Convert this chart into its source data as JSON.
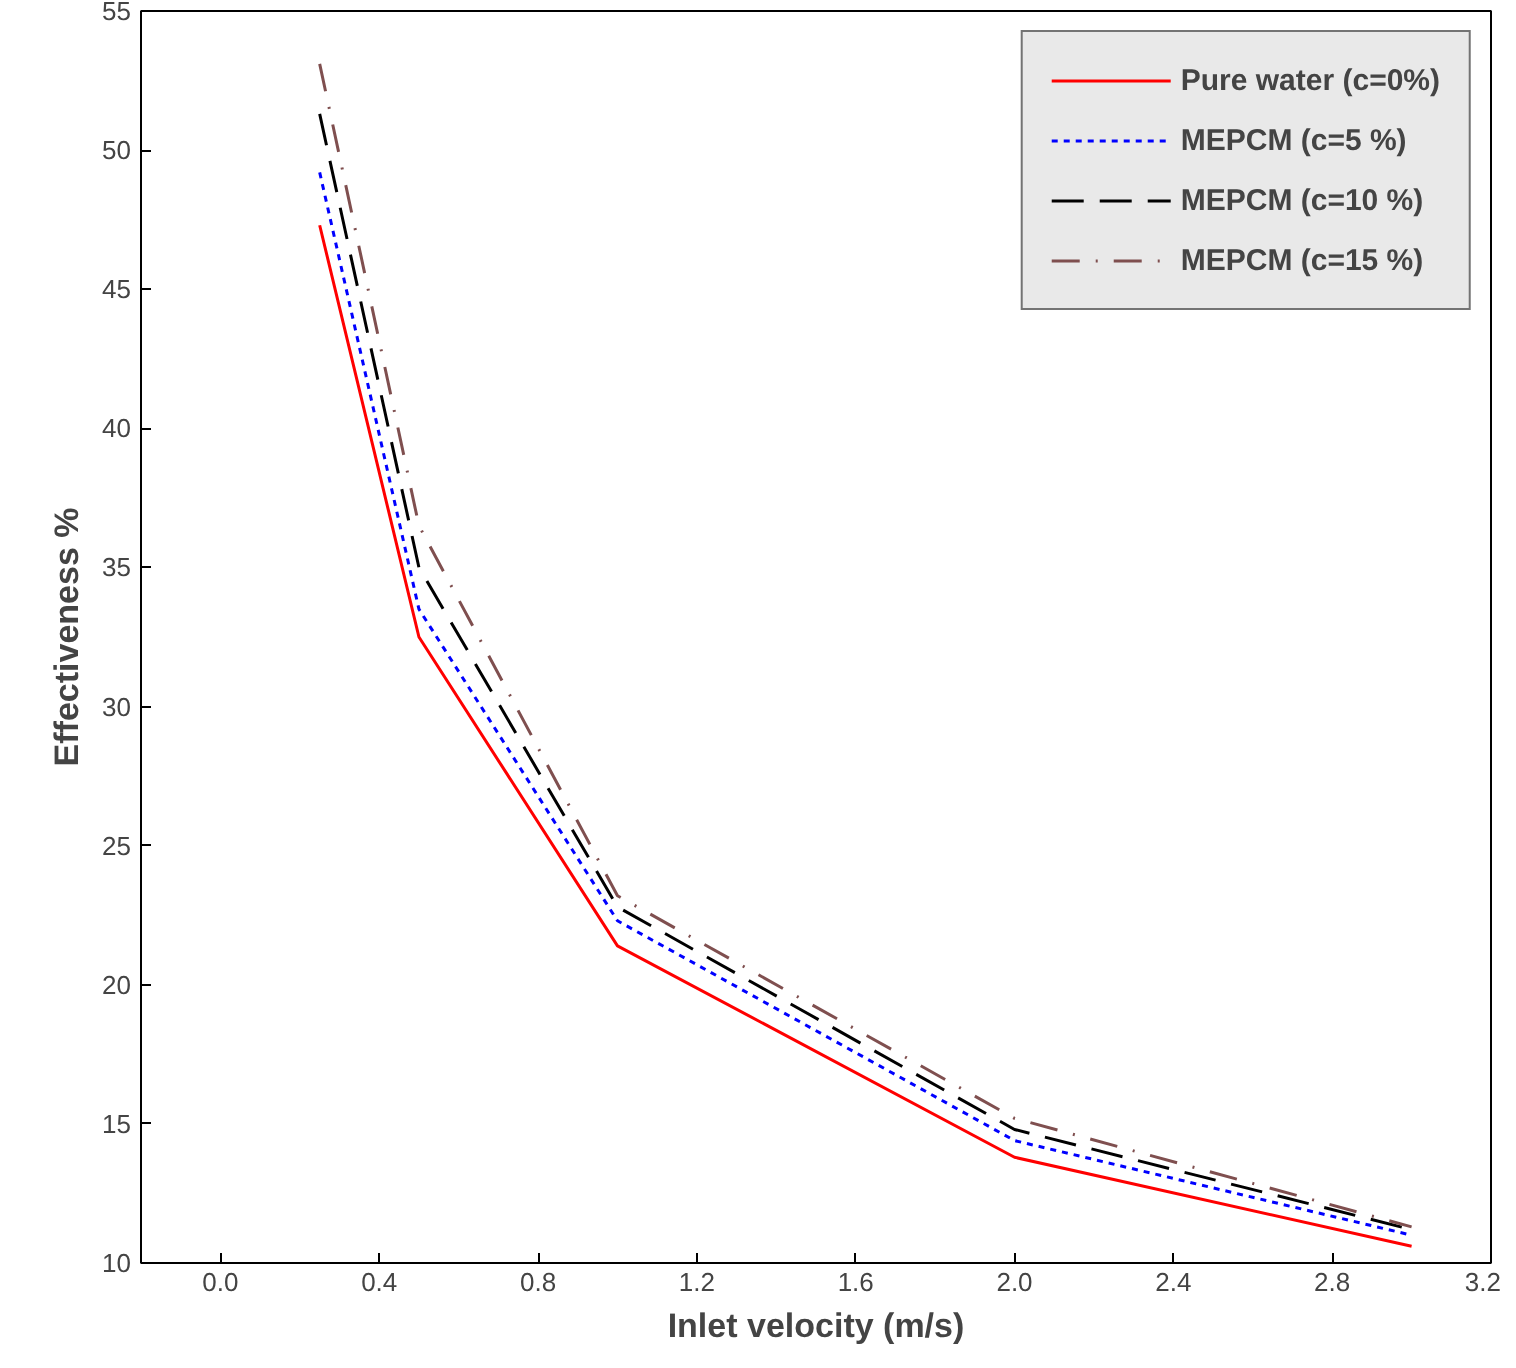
{
  "chart_data": {
    "type": "line",
    "xlabel": "Inlet velocity (m/s)",
    "ylabel": "Effectiveness %",
    "x": [
      0.25,
      0.5,
      1,
      2,
      3
    ],
    "series": [
      {
        "name": "Pure water (c=0%)",
        "color": "#ff0000",
        "line_style": "solid",
        "values": [
          47.3,
          32.5,
          21.4,
          13.8,
          10.6
        ]
      },
      {
        "name": "MEPCM (c=5 %)",
        "color": "#0000ff",
        "line_style": "dotted",
        "values": [
          49.2,
          33.5,
          22.3,
          14.4,
          11.0
        ]
      },
      {
        "name": "MEPCM (c=10 %)",
        "color": "#000000",
        "line_style": "dashed",
        "values": [
          51.3,
          35.0,
          22.8,
          14.8,
          11.2
        ]
      },
      {
        "name": "MEPCM (c=15 %)",
        "color": "#7f4f4f",
        "line_style": "dashdot",
        "values": [
          53.1,
          36.5,
          23.2,
          15.2,
          11.3
        ]
      }
    ],
    "xlim": [
      -0.2,
      3.2
    ],
    "xticks": [
      {
        "value": 0,
        "label": "0.0"
      },
      0.4,
      0.8,
      1.2,
      1.6,
      {
        "value": 2,
        "label": "2.0"
      },
      2.4,
      2.8,
      3.2
    ],
    "ylim": [
      10,
      55
    ],
    "yticks": [
      10,
      15,
      20,
      25,
      30,
      35,
      40,
      45,
      50,
      55
    ],
    "grid": false,
    "legend": "top right",
    "marker": "none"
  }
}
